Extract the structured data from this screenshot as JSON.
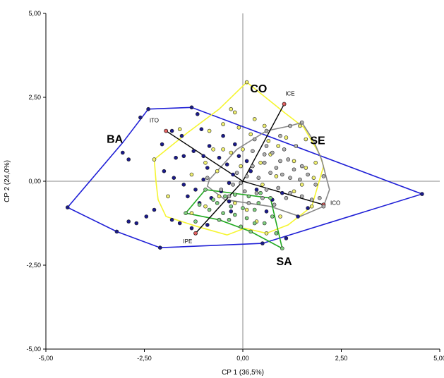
{
  "chart_data": {
    "type": "scatter",
    "subtype": "PCA biplot",
    "xlabel": "CP 1 (36,5%)",
    "ylabel": "CP 2 (24,0%)",
    "xlim": [
      -5,
      5
    ],
    "ylim": [
      -5,
      5
    ],
    "xticks": [
      {
        "v": -5,
        "label": "-5,00"
      },
      {
        "v": -2.5,
        "label": "-2,50"
      },
      {
        "v": 0,
        "label": "0,00"
      },
      {
        "v": 2.5,
        "label": "2,50"
      },
      {
        "v": 5,
        "label": "5,00"
      }
    ],
    "yticks": [
      {
        "v": -5,
        "label": "-5,00"
      },
      {
        "v": -2.5,
        "label": "-2,50"
      },
      {
        "v": 0,
        "label": "0,00"
      },
      {
        "v": 2.5,
        "label": "2,50"
      },
      {
        "v": 5,
        "label": "5,00"
      }
    ],
    "grid": false,
    "reference_lines": [
      0
    ],
    "groups": [
      {
        "name": "BA",
        "hull_color": "#1f1fd6",
        "point_color": "#1a1a8c",
        "label_pos": [
          -3.25,
          1.15
        ],
        "hull": [
          [
            -4.45,
            -0.78
          ],
          [
            -3.05,
            1.15
          ],
          [
            -2.4,
            2.15
          ],
          [
            -1.3,
            2.2
          ],
          [
            4.55,
            -0.38
          ],
          [
            0.5,
            -1.85
          ],
          [
            -2.1,
            -1.98
          ],
          [
            -3.2,
            -1.5
          ]
        ],
        "points": [
          [
            -4.45,
            -0.78
          ],
          [
            -3.05,
            0.85
          ],
          [
            -2.9,
            0.65
          ],
          [
            -3.2,
            -1.5
          ],
          [
            -2.1,
            -1.98
          ],
          [
            -2.4,
            2.15
          ],
          [
            -1.3,
            2.2
          ],
          [
            4.55,
            -0.38
          ],
          [
            0.5,
            -1.85
          ],
          [
            -2.6,
            1.9
          ],
          [
            -2.05,
            1.1
          ],
          [
            -1.8,
            1.5
          ],
          [
            -1.55,
            1.35
          ],
          [
            -1.7,
            0.7
          ],
          [
            -1.5,
            0.75
          ],
          [
            -1.25,
            0.9
          ],
          [
            -1.0,
            0.75
          ],
          [
            -0.85,
            1.05
          ],
          [
            -0.9,
            0.4
          ],
          [
            -0.6,
            0.7
          ],
          [
            -0.4,
            0.5
          ],
          [
            -0.25,
            0.2
          ],
          [
            -0.1,
            0.75
          ],
          [
            0.1,
            0.6
          ],
          [
            0.2,
            0.3
          ],
          [
            -2.0,
            0.3
          ],
          [
            -1.75,
            0.1
          ],
          [
            -1.5,
            -0.1
          ],
          [
            -1.2,
            -0.25
          ],
          [
            -1.4,
            -0.45
          ],
          [
            -1.1,
            -0.65
          ],
          [
            -0.8,
            -0.5
          ],
          [
            -0.55,
            -0.3
          ],
          [
            -0.35,
            -0.6
          ],
          [
            -0.3,
            -0.9
          ],
          [
            -2.25,
            -0.85
          ],
          [
            -2.45,
            -1.05
          ],
          [
            -2.7,
            -1.25
          ],
          [
            -2.9,
            -1.2
          ],
          [
            -1.8,
            -1.15
          ],
          [
            -1.6,
            -1.25
          ],
          [
            -1.3,
            -1.4
          ],
          [
            -0.9,
            -1.3
          ],
          [
            -0.6,
            -1.15
          ],
          [
            0.35,
            -0.25
          ],
          [
            0.75,
            -0.55
          ],
          [
            1.0,
            -0.35
          ],
          [
            1.4,
            -1.05
          ],
          [
            1.65,
            -0.8
          ],
          [
            1.1,
            -1.7
          ],
          [
            0.85,
            -1.55
          ],
          [
            0.6,
            -0.9
          ],
          [
            -0.5,
            1.35
          ],
          [
            -0.2,
            1.1
          ],
          [
            -1.15,
            2.0
          ],
          [
            -1.05,
            1.55
          ],
          [
            -0.35,
            -0.05
          ],
          [
            -1.0,
            0.05
          ]
        ]
      },
      {
        "name": "CO",
        "hull_color": "#f5f530",
        "point_color": "#f0f070",
        "label_pos": [
          0.4,
          2.65
        ],
        "hull": [
          [
            0.1,
            2.95
          ],
          [
            1.05,
            2.05
          ],
          [
            1.55,
            1.6
          ],
          [
            1.75,
            1.2
          ],
          [
            1.95,
            0.8
          ],
          [
            2.05,
            0.45
          ],
          [
            1.75,
            -0.75
          ],
          [
            1.15,
            -1.3
          ],
          [
            0.6,
            -1.55
          ],
          [
            0.05,
            -1.4
          ],
          [
            -0.4,
            -1.6
          ],
          [
            -1.15,
            -1.35
          ],
          [
            -1.95,
            -1.05
          ],
          [
            -2.15,
            -0.55
          ],
          [
            -2.2,
            -0.05
          ],
          [
            -2.25,
            0.65
          ],
          [
            -1.4,
            1.45
          ],
          [
            -0.6,
            2.15
          ]
        ],
        "points": [
          [
            0.1,
            2.95
          ],
          [
            -0.3,
            2.15
          ],
          [
            -0.2,
            2.05
          ],
          [
            -0.5,
            1.7
          ],
          [
            -0.1,
            1.6
          ],
          [
            0.3,
            1.85
          ],
          [
            0.55,
            1.65
          ],
          [
            0.2,
            1.4
          ],
          [
            0.65,
            1.2
          ],
          [
            0.9,
            1.05
          ],
          [
            1.1,
            1.3
          ],
          [
            1.45,
            1.65
          ],
          [
            1.6,
            1.25
          ],
          [
            -1.6,
            1.55
          ],
          [
            -0.85,
            1.5
          ],
          [
            -0.75,
            0.95
          ],
          [
            -0.5,
            0.95
          ],
          [
            -0.3,
            0.85
          ],
          [
            0.0,
            0.95
          ],
          [
            0.45,
            0.55
          ],
          [
            0.7,
            0.8
          ],
          [
            1.3,
            0.6
          ],
          [
            1.6,
            0.4
          ],
          [
            1.85,
            0.55
          ],
          [
            -2.25,
            0.65
          ],
          [
            -1.9,
            -0.45
          ],
          [
            -1.3,
            -0.95
          ],
          [
            -0.95,
            -0.75
          ],
          [
            -0.6,
            -0.45
          ],
          [
            -0.2,
            -0.65
          ],
          [
            0.1,
            -0.85
          ],
          [
            0.35,
            -1.2
          ],
          [
            0.6,
            -1.55
          ],
          [
            0.95,
            -1.05
          ],
          [
            1.3,
            -0.3
          ],
          [
            1.75,
            -0.75
          ],
          [
            1.5,
            -0.1
          ],
          [
            1.8,
            0.1
          ],
          [
            0.85,
            0.15
          ],
          [
            0.5,
            -0.1
          ],
          [
            -0.05,
            0.45
          ],
          [
            -0.65,
            0.3
          ],
          [
            -0.95,
            0.55
          ],
          [
            -1.3,
            0.2
          ]
        ]
      },
      {
        "name": "SE",
        "hull_color": "#888888",
        "point_color": "#b0b0b0",
        "label_pos": [
          1.9,
          1.1
        ],
        "hull": [
          [
            1.5,
            1.75
          ],
          [
            1.8,
            1.2
          ],
          [
            2.0,
            0.65
          ],
          [
            2.2,
            -0.25
          ],
          [
            2.05,
            -0.75
          ],
          [
            1.45,
            -1.05
          ],
          [
            0.7,
            -0.75
          ],
          [
            -0.45,
            -0.55
          ],
          [
            -0.9,
            -0.15
          ],
          [
            -0.85,
            0.05
          ],
          [
            -0.15,
            0.95
          ],
          [
            0.6,
            1.5
          ],
          [
            1.2,
            1.65
          ]
        ],
        "points": [
          [
            1.5,
            1.75
          ],
          [
            2.05,
            -0.75
          ],
          [
            -0.9,
            0.1
          ],
          [
            0.6,
            1.5
          ],
          [
            1.2,
            1.65
          ],
          [
            0.3,
            1.25
          ],
          [
            0.6,
            1.05
          ],
          [
            0.75,
            0.85
          ],
          [
            1.05,
            0.95
          ],
          [
            0.95,
            0.6
          ],
          [
            1.15,
            0.65
          ],
          [
            1.3,
            0.35
          ],
          [
            1.5,
            0.45
          ],
          [
            1.65,
            0.2
          ],
          [
            1.45,
            0.05
          ],
          [
            1.2,
            0.1
          ],
          [
            1.0,
            0.2
          ],
          [
            0.85,
            0.4
          ],
          [
            0.7,
            0.25
          ],
          [
            0.55,
            0.55
          ],
          [
            0.4,
            0.1
          ],
          [
            0.25,
            0.45
          ],
          [
            0.1,
            0.15
          ],
          [
            -0.15,
            0.25
          ],
          [
            -0.25,
            -0.1
          ],
          [
            0.05,
            -0.3
          ],
          [
            0.35,
            -0.35
          ],
          [
            0.6,
            -0.25
          ],
          [
            0.9,
            -0.2
          ],
          [
            1.2,
            -0.35
          ],
          [
            1.5,
            -0.45
          ],
          [
            1.75,
            -0.55
          ],
          [
            1.95,
            -0.5
          ],
          [
            1.85,
            -0.1
          ],
          [
            2.05,
            0.15
          ],
          [
            0.8,
            -0.7
          ],
          [
            0.5,
            -0.5
          ],
          [
            0.15,
            -0.65
          ],
          [
            -0.35,
            -0.45
          ],
          [
            -0.55,
            -0.25
          ],
          [
            1.1,
            -0.5
          ],
          [
            0.55,
            0.8
          ],
          [
            0.95,
            1.35
          ],
          [
            1.35,
            1.05
          ],
          [
            0.25,
            0.9
          ],
          [
            -0.05,
            -0.05
          ]
        ]
      },
      {
        "name": "SA",
        "hull_color": "#22aa22",
        "point_color": "#7fcf7f",
        "label_pos": [
          1.05,
          -2.5
        ],
        "hull": [
          [
            -0.95,
            -0.25
          ],
          [
            0.7,
            -0.5
          ],
          [
            1.0,
            -2.0
          ],
          [
            0.2,
            -1.5
          ],
          [
            -0.6,
            -1.15
          ],
          [
            -1.45,
            -0.95
          ]
        ],
        "points": [
          [
            -0.95,
            -0.25
          ],
          [
            0.7,
            -0.5
          ],
          [
            1.0,
            -2.0
          ],
          [
            -1.45,
            -0.95
          ],
          [
            -0.6,
            -1.15
          ],
          [
            0.2,
            -1.5
          ],
          [
            -0.75,
            -0.55
          ],
          [
            -0.45,
            -0.45
          ],
          [
            -0.2,
            -0.4
          ],
          [
            0.15,
            -0.45
          ],
          [
            0.45,
            -0.35
          ],
          [
            -0.3,
            -0.75
          ],
          [
            0.0,
            -0.8
          ],
          [
            0.3,
            -0.85
          ],
          [
            -0.5,
            -0.95
          ],
          [
            -0.2,
            -1.0
          ],
          [
            0.1,
            -1.1
          ],
          [
            -0.85,
            -0.85
          ],
          [
            -1.1,
            -0.7
          ],
          [
            0.55,
            -1.25
          ],
          [
            0.75,
            -1.05
          ],
          [
            -0.65,
            -0.65
          ],
          [
            0.4,
            -0.65
          ],
          [
            -0.05,
            -1.35
          ],
          [
            0.3,
            -1.25
          ],
          [
            0.85,
            -1.55
          ],
          [
            -1.2,
            -1.2
          ],
          [
            -0.35,
            -1.15
          ]
        ]
      }
    ],
    "vectors": [
      {
        "name": "ICE",
        "label": "ICE",
        "end": [
          1.05,
          2.3
        ],
        "label_pos": [
          1.2,
          2.55
        ]
      },
      {
        "name": "ITO",
        "label": "ITO",
        "end": [
          -1.95,
          1.5
        ],
        "label_pos": [
          -2.25,
          1.75
        ]
      },
      {
        "name": "ICO",
        "label": "ICO",
        "end": [
          2.05,
          -0.7
        ],
        "label_pos": [
          2.35,
          -0.7
        ]
      },
      {
        "name": "IPE",
        "label": "IPE",
        "end": [
          -1.2,
          -1.55
        ],
        "label_pos": [
          -1.4,
          -1.85
        ]
      }
    ],
    "vector_end_color": "#e06060"
  }
}
